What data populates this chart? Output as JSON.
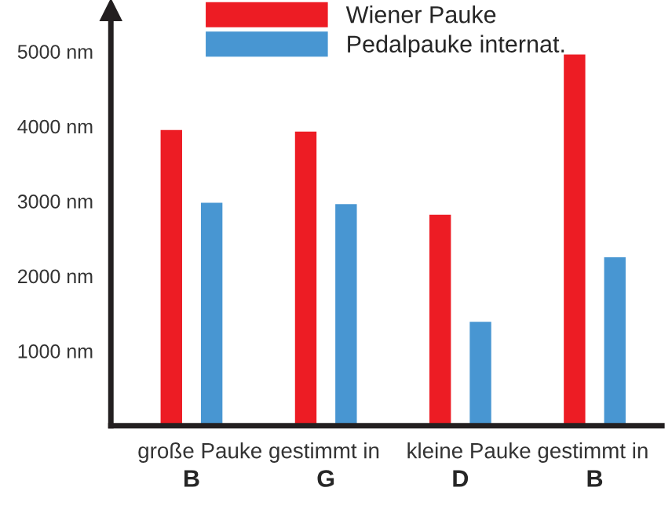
{
  "chart_data": {
    "type": "bar",
    "categories": [
      "B",
      "G",
      "D",
      "B"
    ],
    "series": [
      {
        "name": "Wiener Pauke",
        "color": "#ed1c24",
        "values": [
          3950,
          3930,
          2820,
          4960
        ]
      },
      {
        "name": "Pedalpauke internat.",
        "color": "#4896d2",
        "values": [
          2980,
          2960,
          1390,
          2250
        ]
      }
    ],
    "ylim": [
      0,
      5550
    ],
    "yticks": [
      {
        "value": 1000,
        "label": "1000 nm"
      },
      {
        "value": 2000,
        "label": "2000 nm"
      },
      {
        "value": 3000,
        "label": "3000 nm"
      },
      {
        "value": 4000,
        "label": "4000 nm"
      },
      {
        "value": 5000,
        "label": "5000 nm"
      }
    ],
    "annotations": [
      "große Pauke gestimmt in",
      "kleine Pauke gestimmt in"
    ],
    "grid": false,
    "legend": "top"
  }
}
